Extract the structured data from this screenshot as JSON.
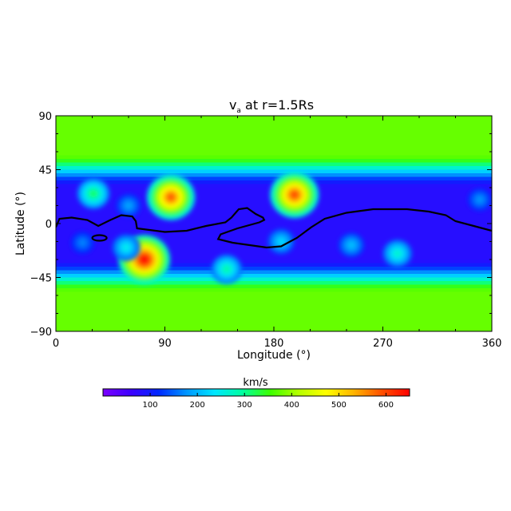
{
  "chart_data": {
    "type": "heatmap",
    "title": "v",
    "title_sub": "a",
    "title_rest": " at r=1.5Rs",
    "xlabel": "Longitude (°)",
    "ylabel": "Latitude (°)",
    "xlim": [
      0,
      360
    ],
    "ylim": [
      -90,
      90
    ],
    "x_ticks": [
      "0",
      "90",
      "180",
      "270",
      "360"
    ],
    "y_ticks": [
      "90",
      "45",
      "0",
      "−45",
      "−90"
    ],
    "background_value_low_lat": 80,
    "background_value_high_lat": 375,
    "colorbar": {
      "label": "km/s",
      "range": [
        0,
        650
      ],
      "ticks": [
        "100",
        "200",
        "300",
        "400",
        "500",
        "600"
      ],
      "colors": [
        "#7b00ff",
        "#3c00ff",
        "#0028ff",
        "#0096ff",
        "#00e6ff",
        "#00ffa0",
        "#3cff00",
        "#b4ff00",
        "#ffff00",
        "#ffb400",
        "#ff5000",
        "#ff0000"
      ]
    },
    "fast_streams": [
      {
        "lon": 95,
        "lat": 22,
        "peak": 580
      },
      {
        "lon": 197,
        "lat": 24,
        "peak": 590
      },
      {
        "lon": 73,
        "lat": -30,
        "peak": 640
      },
      {
        "lon": 31,
        "lat": 25,
        "peak": 320
      },
      {
        "lon": 282,
        "lat": -25,
        "peak": 270
      },
      {
        "lon": 186,
        "lat": -15,
        "peak": 230
      },
      {
        "lon": 141,
        "lat": -38,
        "peak": 290
      },
      {
        "lon": 244,
        "lat": -18,
        "peak": 210
      },
      {
        "lon": 350,
        "lat": 20,
        "peak": 180
      },
      {
        "lon": 58,
        "lat": -20,
        "peak": 250
      },
      {
        "lon": 22,
        "lat": -16,
        "peak": 170
      },
      {
        "lon": 60,
        "lat": 15,
        "peak": 190
      }
    ],
    "neutral_line": [
      [
        0,
        -3
      ],
      [
        3,
        4
      ],
      [
        13,
        5
      ],
      [
        26,
        3
      ],
      [
        35,
        -2
      ],
      [
        45,
        3
      ],
      [
        54,
        7
      ],
      [
        63,
        6
      ],
      [
        66,
        2
      ],
      [
        67,
        -4
      ],
      [
        90,
        -7
      ],
      [
        108,
        -6
      ],
      [
        124,
        -2
      ],
      [
        140,
        1
      ],
      [
        145,
        5
      ],
      [
        151,
        12
      ],
      [
        158,
        13
      ],
      [
        165,
        8
      ],
      [
        171,
        5
      ],
      [
        172,
        3
      ],
      [
        168,
        1
      ],
      [
        150,
        -4
      ],
      [
        136,
        -9
      ],
      [
        134,
        -13
      ],
      [
        146,
        -16
      ],
      [
        160,
        -18
      ],
      [
        174,
        -20
      ],
      [
        186,
        -19
      ],
      [
        199,
        -12
      ],
      [
        211,
        -3
      ],
      [
        222,
        4
      ],
      [
        240,
        9
      ],
      [
        262,
        12
      ],
      [
        290,
        12
      ],
      [
        308,
        10
      ],
      [
        322,
        7
      ],
      [
        330,
        2
      ],
      [
        345,
        -2
      ],
      [
        360,
        -6
      ]
    ],
    "neutral_loop": {
      "lon": 36,
      "lat": -12
    }
  }
}
